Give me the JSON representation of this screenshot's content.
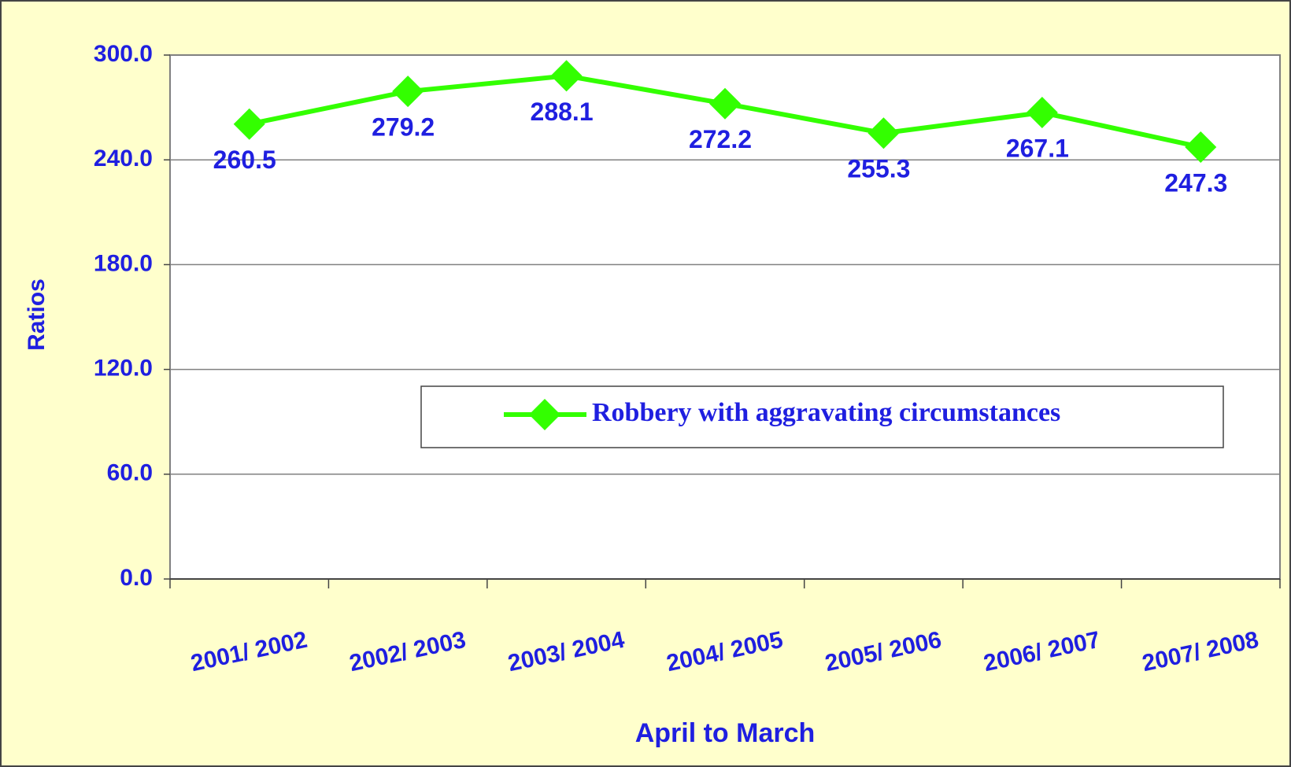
{
  "chart_data": {
    "type": "line",
    "ylabel": "Ratios",
    "xlabel": "April to March",
    "categories": [
      "2001/ 2002",
      "2002/ 2003",
      "2003/ 2004",
      "2004/ 2005",
      "2005/ 2006",
      "2006/ 2007",
      "2007/ 2008"
    ],
    "series": [
      {
        "name": "Robbery with aggravating circumstances",
        "color": "#33ff00",
        "values": [
          260.5,
          279.2,
          288.1,
          272.2,
          255.3,
          267.1,
          247.3
        ]
      }
    ],
    "ylim": [
      0,
      300
    ],
    "yticks": [
      {
        "value": 0,
        "label": "0.0"
      },
      {
        "value": 60,
        "label": "60.0"
      },
      {
        "value": 120,
        "label": "120.0"
      },
      {
        "value": 180,
        "label": "180.0"
      },
      {
        "value": 240,
        "label": "240.0"
      },
      {
        "value": 300,
        "label": "300.0"
      }
    ],
    "grid": true
  }
}
